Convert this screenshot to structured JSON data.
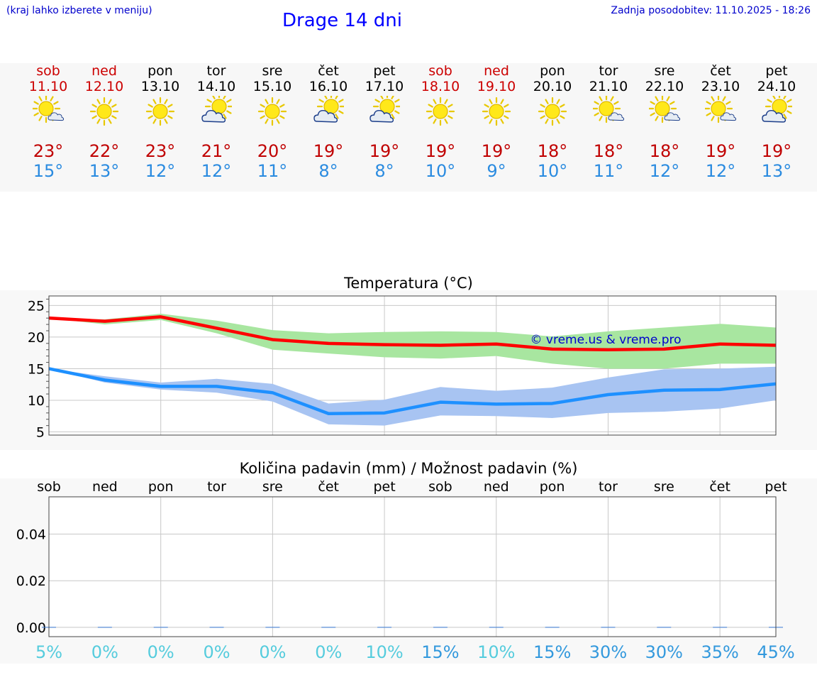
{
  "header": {
    "hint": "(kraj lahko izberete v meniju)",
    "title": "Drage 14 dni",
    "updated": "Zadnja posodobitev: 11.10.2025 - 18:26"
  },
  "days": [
    {
      "name": "sob",
      "date": "11.10",
      "weekend": true,
      "icon": "sun-partly-cloudy-icon",
      "tmax": "23°",
      "tmin": "15°"
    },
    {
      "name": "ned",
      "date": "12.10",
      "weekend": true,
      "icon": "sun-icon",
      "tmax": "22°",
      "tmin": "13°"
    },
    {
      "name": "pon",
      "date": "13.10",
      "weekend": false,
      "icon": "sun-icon",
      "tmax": "23°",
      "tmin": "12°"
    },
    {
      "name": "tor",
      "date": "14.10",
      "weekend": false,
      "icon": "cloud-sun-icon",
      "tmax": "21°",
      "tmin": "12°"
    },
    {
      "name": "sre",
      "date": "15.10",
      "weekend": false,
      "icon": "sun-icon",
      "tmax": "20°",
      "tmin": "11°"
    },
    {
      "name": "čet",
      "date": "16.10",
      "weekend": false,
      "icon": "cloud-sun-icon",
      "tmax": "19°",
      "tmin": "8°"
    },
    {
      "name": "pet",
      "date": "17.10",
      "weekend": false,
      "icon": "cloud-sun-icon",
      "tmax": "19°",
      "tmin": "8°"
    },
    {
      "name": "sob",
      "date": "18.10",
      "weekend": true,
      "icon": "sun-icon",
      "tmax": "19°",
      "tmin": "10°"
    },
    {
      "name": "ned",
      "date": "19.10",
      "weekend": true,
      "icon": "sun-icon",
      "tmax": "19°",
      "tmin": "9°"
    },
    {
      "name": "pon",
      "date": "20.10",
      "weekend": false,
      "icon": "sun-icon",
      "tmax": "18°",
      "tmin": "10°"
    },
    {
      "name": "tor",
      "date": "21.10",
      "weekend": false,
      "icon": "sun-partly-cloudy-icon",
      "tmax": "18°",
      "tmin": "11°"
    },
    {
      "name": "sre",
      "date": "22.10",
      "weekend": false,
      "icon": "sun-partly-cloudy-icon",
      "tmax": "18°",
      "tmin": "12°"
    },
    {
      "name": "čet",
      "date": "23.10",
      "weekend": false,
      "icon": "sun-partly-cloudy-icon",
      "tmax": "19°",
      "tmin": "12°"
    },
    {
      "name": "pet",
      "date": "24.10",
      "weekend": false,
      "icon": "cloud-sun-icon",
      "tmax": "19°",
      "tmin": "13°"
    }
  ],
  "chart_data": [
    {
      "type": "line",
      "title": "Temperatura (°C)",
      "xlabel": "",
      "ylabel": "",
      "ylim": [
        4.5,
        26.5
      ],
      "yticks": [
        5,
        10,
        15,
        20,
        25
      ],
      "x": [
        "11.10",
        "12.10",
        "13.10",
        "14.10",
        "15.10",
        "16.10",
        "17.10",
        "18.10",
        "19.10",
        "20.10",
        "21.10",
        "22.10",
        "23.10",
        "24.10"
      ],
      "watermark": "© vreme.us & vreme.pro",
      "series": [
        {
          "name": "max",
          "color": "#ff0000",
          "values": [
            23,
            22.5,
            23.2,
            21.4,
            19.6,
            19.0,
            18.8,
            18.7,
            18.9,
            18.1,
            18.0,
            18.1,
            18.9,
            18.7
          ]
        },
        {
          "name": "max range low",
          "values": [
            23,
            22.0,
            22.7,
            20.6,
            18.0,
            17.4,
            16.8,
            16.6,
            17.0,
            15.8,
            15.0,
            15.0,
            15.8,
            15.8
          ]
        },
        {
          "name": "max range high",
          "values": [
            23,
            22.8,
            23.7,
            22.6,
            21.1,
            20.6,
            20.8,
            20.9,
            20.8,
            20.1,
            20.9,
            21.5,
            22.1,
            21.5
          ]
        },
        {
          "name": "min",
          "color": "#1e90ff",
          "values": [
            15,
            13.2,
            12.2,
            12.2,
            11.2,
            7.9,
            8.0,
            9.7,
            9.4,
            9.5,
            10.9,
            11.6,
            11.7,
            12.6
          ]
        },
        {
          "name": "min range low",
          "values": [
            15,
            12.8,
            11.7,
            11.2,
            9.8,
            6.2,
            6.0,
            7.6,
            7.5,
            7.2,
            8.0,
            8.2,
            8.7,
            10.0
          ]
        },
        {
          "name": "min range high",
          "values": [
            15,
            13.8,
            12.8,
            13.4,
            12.6,
            9.5,
            10.1,
            12.1,
            11.5,
            12.0,
            13.6,
            14.9,
            15.0,
            15.3
          ]
        }
      ]
    },
    {
      "type": "bar",
      "title": "Količina padavin (mm) / Možnost padavin (%)",
      "categories": [
        "sob",
        "ned",
        "pon",
        "tor",
        "sre",
        "čet",
        "pet",
        "sob",
        "ned",
        "pon",
        "tor",
        "sre",
        "čet",
        "pet"
      ],
      "ylim": [
        -0.004,
        0.056
      ],
      "yticks": [
        "0.00",
        "0.02",
        "0.04"
      ],
      "series": [
        {
          "name": "precipitation_mm",
          "values": [
            0,
            0,
            0,
            0,
            0,
            0,
            0,
            0,
            0,
            0,
            0,
            0,
            0,
            0
          ]
        }
      ],
      "chance": [
        "5%",
        "0%",
        "0%",
        "0%",
        "0%",
        "0%",
        "10%",
        "15%",
        "10%",
        "15%",
        "30%",
        "30%",
        "35%",
        "45%"
      ],
      "chance_values": [
        5,
        0,
        0,
        0,
        0,
        0,
        10,
        15,
        10,
        15,
        30,
        30,
        35,
        45
      ]
    }
  ]
}
